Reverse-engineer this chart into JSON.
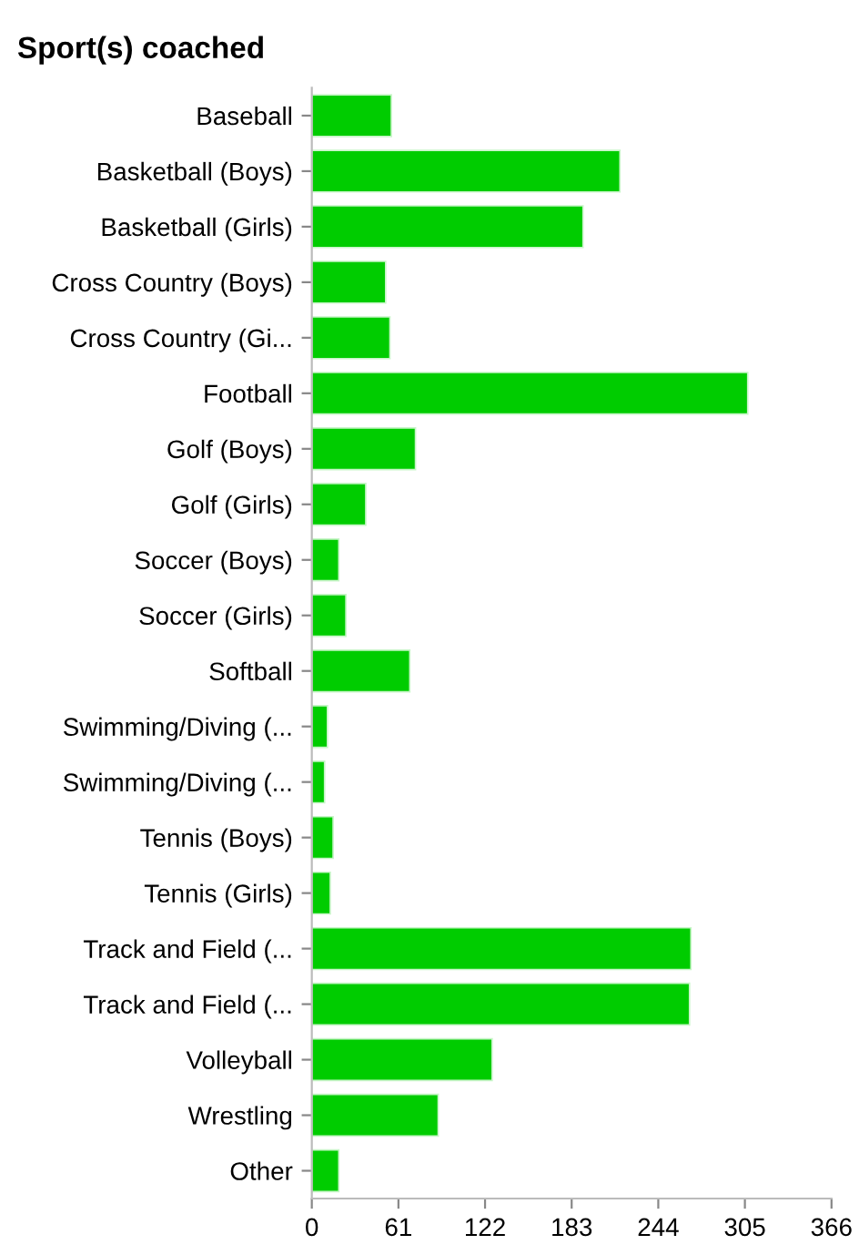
{
  "chart_data": {
    "type": "bar",
    "orientation": "horizontal",
    "title": "Sport(s) coached",
    "categories": [
      "Baseball",
      "Basketball (Boys)",
      "Basketball (Girls)",
      "Cross Country (Boys)",
      "Cross Country (Gi...",
      "Football",
      "Golf (Boys)",
      "Golf (Girls)",
      "Soccer (Boys)",
      "Soccer (Girls)",
      "Softball",
      "Swimming/Diving (...",
      "Swimming/Diving (...",
      "Tennis (Boys)",
      "Tennis (Girls)",
      "Track and Field (...",
      "Track and Field (...",
      "Volleyball",
      "Wrestling",
      "Other"
    ],
    "values": [
      56,
      217,
      191,
      52,
      55,
      307,
      73,
      38,
      19,
      24,
      69,
      11,
      9,
      15,
      13,
      267,
      266,
      127,
      89,
      19
    ],
    "color": "#00cc00",
    "xlim": [
      0,
      366
    ],
    "xticks": [
      0,
      61,
      122,
      183,
      244,
      305,
      366
    ],
    "grid": false
  }
}
